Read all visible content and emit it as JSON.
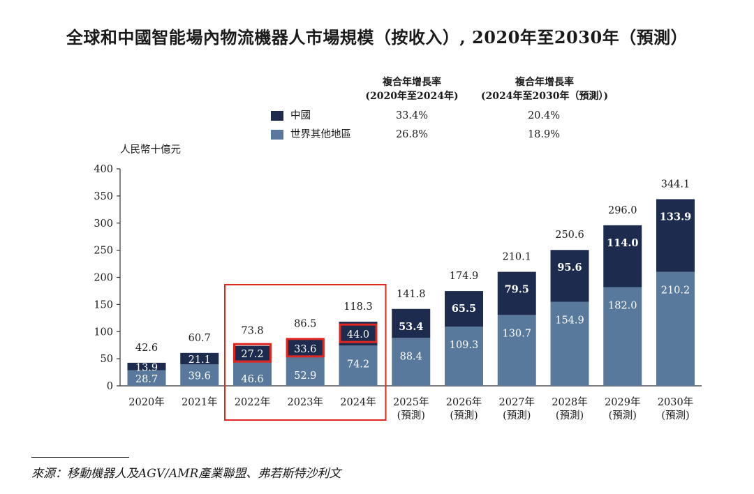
{
  "title": "全球和中國智能場內物流機器人市場規模（按收入）, 2020年至2030年（預測）",
  "unit_label": "人民幣十億元",
  "colors": {
    "china": "#1c2b4e",
    "rest_of_world": "#58799b",
    "highlight": "#e0271f",
    "axis": "#333333"
  },
  "cagr": {
    "header_1": [
      "複合年增長率",
      "(2020年至2024年)"
    ],
    "header_2": [
      "複合年增長率",
      "(2024年至2030年（預測）)"
    ],
    "rows": [
      {
        "label": "中國",
        "v1": "33.4%",
        "v2": "20.4%"
      },
      {
        "label": "世界其他地區",
        "v1": "26.8%",
        "v2": "18.9%"
      }
    ]
  },
  "source": "來源：移動機器人及AGV/AMR產業聯盟、弗若斯特沙利文",
  "chart_data": {
    "type": "bar",
    "stacked": true,
    "title": "全球和中國智能場內物流機器人市場規模（按收入）, 2020年至2030年（預測）",
    "ylabel": "人民幣十億元",
    "ylim": [
      0,
      400
    ],
    "yticks": [
      0,
      50,
      100,
      150,
      200,
      250,
      300,
      350,
      400
    ],
    "categories": [
      "2020年",
      "2021年",
      "2022年",
      "2023年",
      "2024年",
      "2025年",
      "2026年",
      "2027年",
      "2028年",
      "2029年",
      "2030年"
    ],
    "sublabels": [
      "",
      "",
      "",
      "",
      "",
      "(預測)",
      "(預測)",
      "(預測)",
      "(預測)",
      "(預測)",
      "(預測)"
    ],
    "series": [
      {
        "name": "世界其他地區",
        "values": [
          28.7,
          39.6,
          46.6,
          52.9,
          74.2,
          88.4,
          109.3,
          130.7,
          154.9,
          182.0,
          210.2
        ]
      },
      {
        "name": "中國",
        "values": [
          13.9,
          21.1,
          27.2,
          33.6,
          44.0,
          53.4,
          65.5,
          79.5,
          95.6,
          114.0,
          133.9
        ]
      }
    ],
    "totals": [
      42.6,
      60.7,
      73.8,
      86.5,
      118.3,
      141.8,
      174.9,
      210.1,
      250.6,
      296.0,
      344.1
    ],
    "highlighted_categories": [
      "2022年",
      "2023年",
      "2024年"
    ],
    "legend": "top-center",
    "grid": false
  }
}
